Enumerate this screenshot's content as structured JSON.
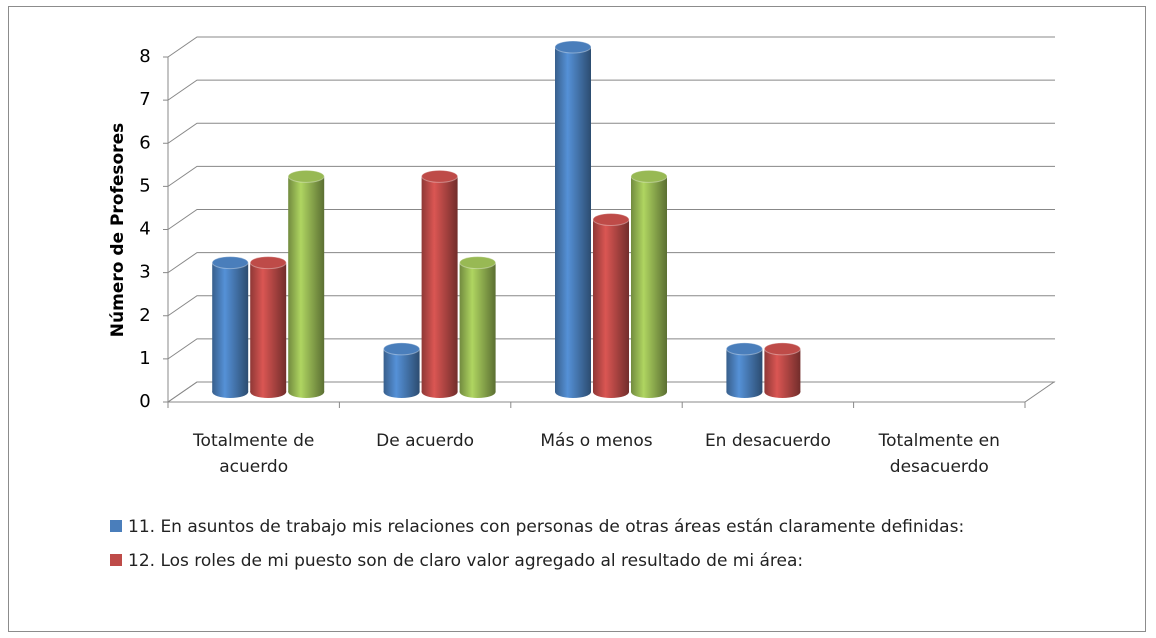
{
  "chart_data": {
    "type": "bar3d",
    "y_label": "Número de Profesores",
    "categories": [
      "Totalmente de acuerdo",
      "De acuerdo",
      "Más o menos",
      "En desacuerdo",
      "Totalmente en desacuerdo"
    ],
    "series": [
      {
        "name": "11. En asuntos de trabajo mis relaciones con personas de otras áreas están claramente definidas:",
        "color": "#4a7ebb",
        "values": [
          3,
          1,
          8,
          1,
          0
        ]
      },
      {
        "name": "12. Los roles de mi puesto son de claro valor agregado al resultado de mi área:",
        "color": "#be4b48",
        "values": [
          3,
          5,
          4,
          1,
          0
        ]
      },
      {
        "color": "#98b954",
        "values": [
          5,
          3,
          5,
          0,
          0
        ]
      }
    ],
    "ylim": [
      0,
      8
    ],
    "yticks": [
      0,
      1,
      2,
      3,
      4,
      5,
      6,
      7,
      8
    ],
    "grid": true
  }
}
